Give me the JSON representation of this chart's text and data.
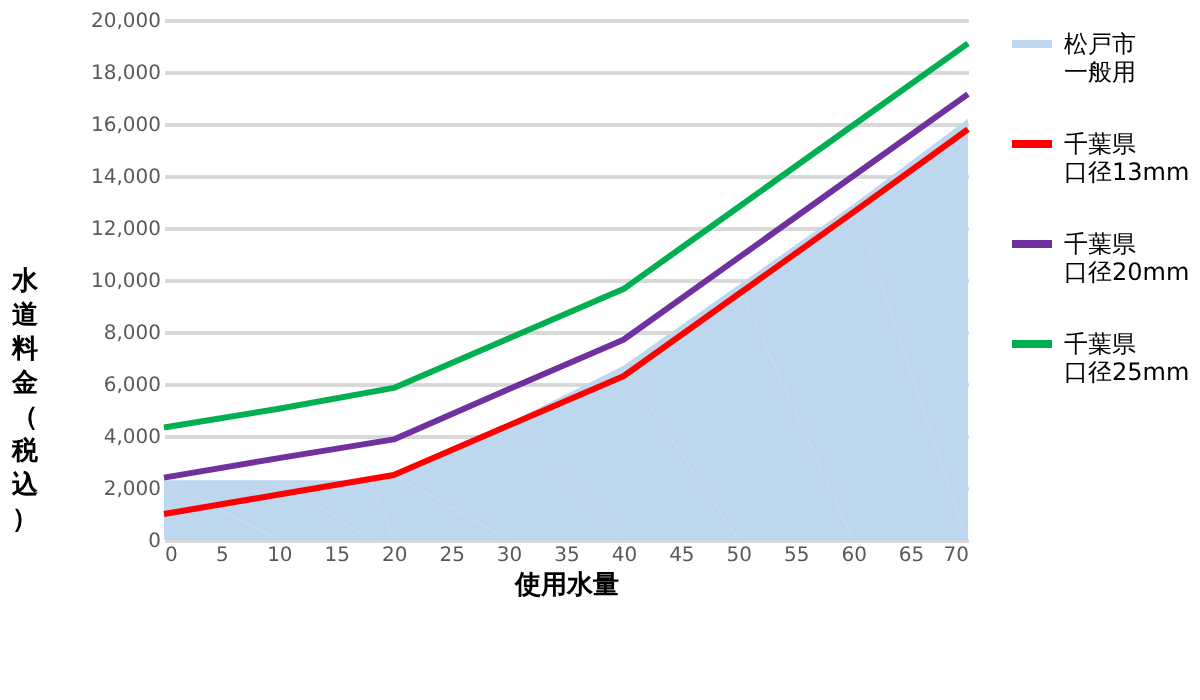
{
  "chart_data": {
    "type": "line",
    "xlabel": "使用水量",
    "ylabel": "水道料金（税込）",
    "x": [
      0,
      10,
      20,
      30,
      40,
      50,
      60,
      70
    ],
    "series": [
      {
        "name": "松戸市一般用",
        "type": "area",
        "color": "#bdd7ee",
        "x": [
          0,
          10,
          18,
          20,
          30,
          40,
          50,
          60,
          70
        ],
        "values": [
          2300,
          2300,
          2300,
          2500,
          4500,
          6700,
          9800,
          12900,
          16200
        ]
      },
      {
        "name": "千葉県口径13mm",
        "color": "#ff0000",
        "values": [
          1000,
          1750,
          2500,
          4400,
          6300,
          9450,
          12600,
          15800
        ]
      },
      {
        "name": "千葉県口径20mm",
        "color": "#7030a0",
        "values": [
          2400,
          3150,
          3870,
          5800,
          7700,
          10850,
          14000,
          17150
        ]
      },
      {
        "name": "千葉県口径25mm",
        "color": "#00b050",
        "values": [
          4330,
          5050,
          5850,
          7750,
          9650,
          12800,
          15950,
          19100
        ]
      }
    ],
    "xlim": [
      0,
      70
    ],
    "xticks": [
      0,
      5,
      10,
      15,
      20,
      25,
      30,
      35,
      40,
      45,
      50,
      55,
      60,
      65,
      70
    ],
    "ylim": [
      0,
      20000
    ],
    "yticks": [
      0,
      {
        "value": 2000,
        "label": "2,000"
      },
      {
        "value": 4000,
        "label": "4,000"
      },
      {
        "value": 6000,
        "label": "6,000"
      },
      {
        "value": 8000,
        "label": "8,000"
      },
      {
        "value": 10000,
        "label": "10,000"
      },
      {
        "value": 12000,
        "label": "12,000"
      },
      {
        "value": 14000,
        "label": "14,000"
      },
      {
        "value": 16000,
        "label": "16,000"
      },
      {
        "value": 18000,
        "label": "18,000"
      },
      {
        "value": 20000,
        "label": "20,000"
      }
    ],
    "grid": "y",
    "legend": "right",
    "line_style": "solid",
    "marker": "none"
  }
}
